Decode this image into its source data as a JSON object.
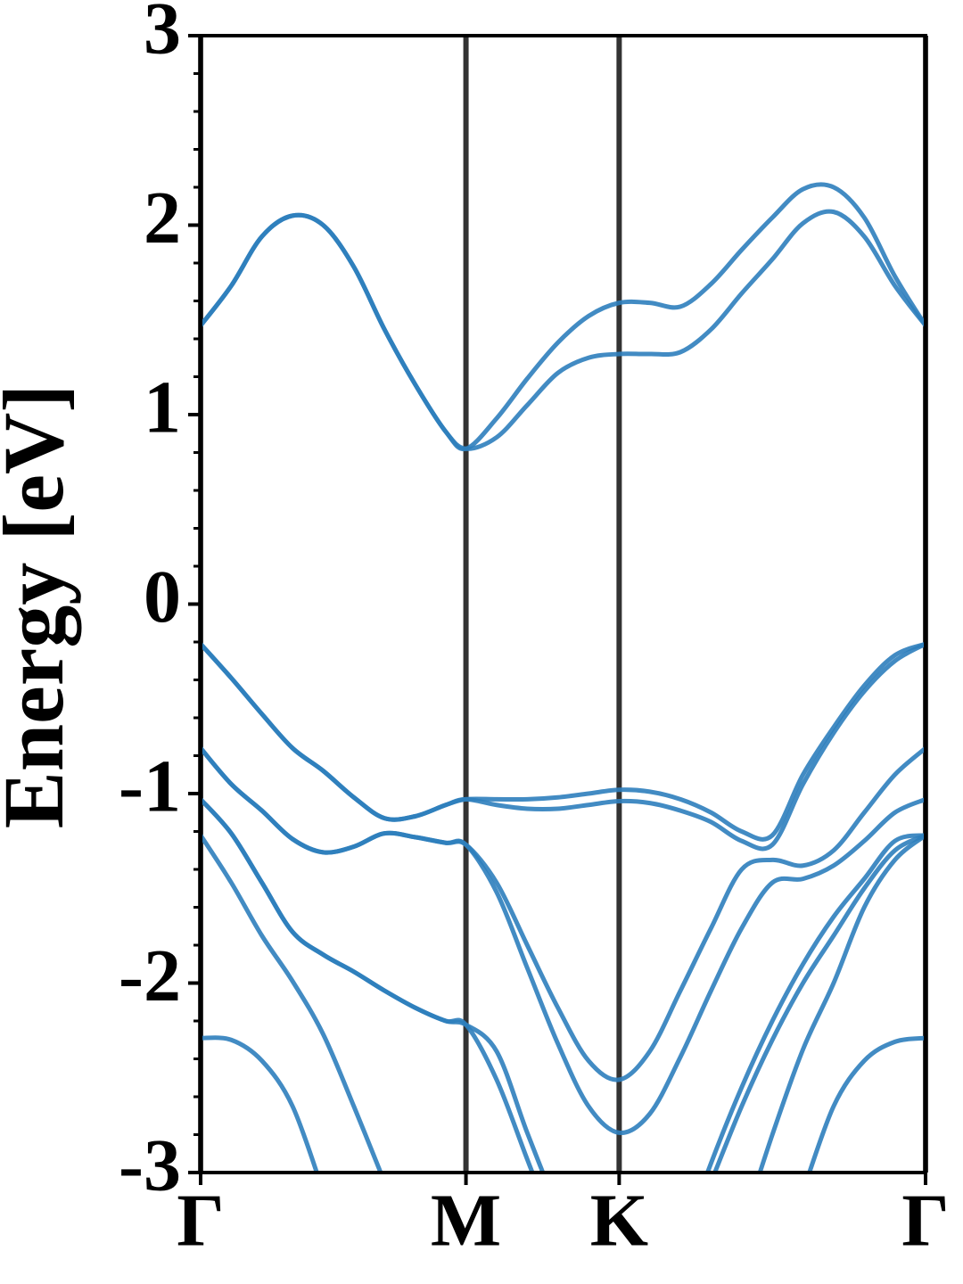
{
  "chart_data": {
    "type": "line",
    "ylabel": "Energy [eV]",
    "x": [
      0,
      0.1,
      0.2,
      0.3,
      0.4,
      0.5,
      0.6,
      0.7,
      0.8,
      0.866,
      0.966,
      1.066,
      1.166,
      1.266,
      1.366,
      1.466,
      1.566,
      1.666,
      1.766,
      1.866,
      1.966,
      2.066,
      2.166,
      2.266,
      2.366
    ],
    "xlim": [
      0,
      2.366
    ],
    "xticks": [
      {
        "value": 0,
        "label": "Γ"
      },
      {
        "value": 0.866,
        "label": "M"
      },
      {
        "value": 1.366,
        "label": "K"
      },
      {
        "value": 2.366,
        "label": "Γ"
      }
    ],
    "ylim": [
      -3,
      3
    ],
    "yticks": [
      -3,
      -2,
      -1,
      0,
      1,
      2,
      3
    ],
    "yminorticks": [
      -2.8,
      -2.6,
      -2.4,
      -2.2,
      -1.8,
      -1.6,
      -1.4,
      -1.2,
      -0.8,
      -0.6,
      -0.4,
      -0.2,
      0.2,
      0.4,
      0.6,
      0.8,
      1.2,
      1.4,
      1.6,
      1.8,
      2.2,
      2.4,
      2.6,
      2.8
    ],
    "grid": "x",
    "grid_color": "#333333",
    "color": "#2e7ebc",
    "series": [
      {
        "values": [
          1.47,
          1.68,
          1.94,
          2.05,
          2.0,
          1.78,
          1.45,
          1.16,
          0.91,
          0.82,
          0.88,
          1.05,
          1.22,
          1.3,
          1.32,
          1.32,
          1.33,
          1.45,
          1.64,
          1.82,
          2.01,
          2.07,
          1.94,
          1.68,
          1.47
        ]
      },
      {
        "values": [
          1.47,
          1.68,
          1.94,
          2.05,
          2.0,
          1.78,
          1.45,
          1.16,
          0.91,
          0.82,
          0.98,
          1.19,
          1.38,
          1.52,
          1.59,
          1.59,
          1.57,
          1.69,
          1.87,
          2.04,
          2.19,
          2.2,
          2.04,
          1.73,
          1.47
        ]
      },
      {
        "values": [
          -0.21,
          -0.39,
          -0.58,
          -0.76,
          -0.88,
          -1.02,
          -1.13,
          -1.12,
          -1.06,
          -1.03,
          -1.03,
          -1.03,
          -1.02,
          -1.0,
          -0.98,
          -0.99,
          -1.03,
          -1.1,
          -1.2,
          -1.22,
          -0.9,
          -0.65,
          -0.43,
          -0.27,
          -0.21
        ]
      },
      {
        "values": [
          -0.21,
          -0.39,
          -0.58,
          -0.76,
          -0.88,
          -1.02,
          -1.13,
          -1.12,
          -1.06,
          -1.03,
          -1.06,
          -1.08,
          -1.08,
          -1.06,
          -1.04,
          -1.05,
          -1.09,
          -1.15,
          -1.25,
          -1.27,
          -0.95,
          -0.68,
          -0.46,
          -0.3,
          -0.21
        ]
      },
      {
        "values": [
          -0.76,
          -0.95,
          -1.09,
          -1.24,
          -1.31,
          -1.28,
          -1.21,
          -1.23,
          -1.26,
          -1.27,
          -1.47,
          -1.8,
          -2.13,
          -2.41,
          -2.51,
          -2.36,
          -2.04,
          -1.71,
          -1.4,
          -1.35,
          -1.38,
          -1.3,
          -1.1,
          -0.9,
          -0.76
        ]
      },
      {
        "values": [
          -0.76,
          -0.95,
          -1.09,
          -1.24,
          -1.31,
          -1.28,
          -1.21,
          -1.23,
          -1.26,
          -1.27,
          -1.52,
          -1.92,
          -2.32,
          -2.65,
          -2.79,
          -2.69,
          -2.39,
          -2.04,
          -1.71,
          -1.47,
          -1.45,
          -1.38,
          -1.25,
          -1.1,
          -1.03
        ]
      },
      {
        "values": [
          -1.03,
          -1.21,
          -1.47,
          -1.73,
          -1.85,
          -1.94,
          -2.04,
          -2.13,
          -2.2,
          -2.22,
          -2.36,
          -2.79,
          -3.2,
          null,
          null,
          null,
          -3.4,
          -2.95,
          -2.55,
          -2.2,
          -1.9,
          -1.65,
          -1.45,
          -1.25,
          -1.22
        ]
      },
      {
        "values": [
          -1.03,
          -1.21,
          -1.47,
          -1.73,
          -1.85,
          -1.94,
          -2.04,
          -2.13,
          -2.2,
          -2.22,
          -2.51,
          -2.93,
          -3.35,
          null,
          null,
          null,
          null,
          -3.05,
          -2.65,
          -2.3,
          -2.0,
          -1.75,
          -1.5,
          -1.3,
          -1.22
        ]
      },
      {
        "values": [
          -1.22,
          -1.47,
          -1.75,
          -1.99,
          -2.27,
          -2.65,
          -3.05,
          null,
          null,
          null,
          null,
          null,
          null,
          null,
          null,
          null,
          null,
          null,
          -3.3,
          -2.8,
          -2.35,
          -2.0,
          -1.6,
          -1.35,
          -1.22
        ]
      },
      {
        "values": [
          -2.29,
          -2.3,
          -2.41,
          -2.65,
          -3.1,
          null,
          null,
          null,
          null,
          null,
          null,
          null,
          null,
          null,
          null,
          null,
          null,
          null,
          null,
          null,
          -3.1,
          -2.65,
          -2.41,
          -2.31,
          -2.29
        ]
      }
    ]
  }
}
